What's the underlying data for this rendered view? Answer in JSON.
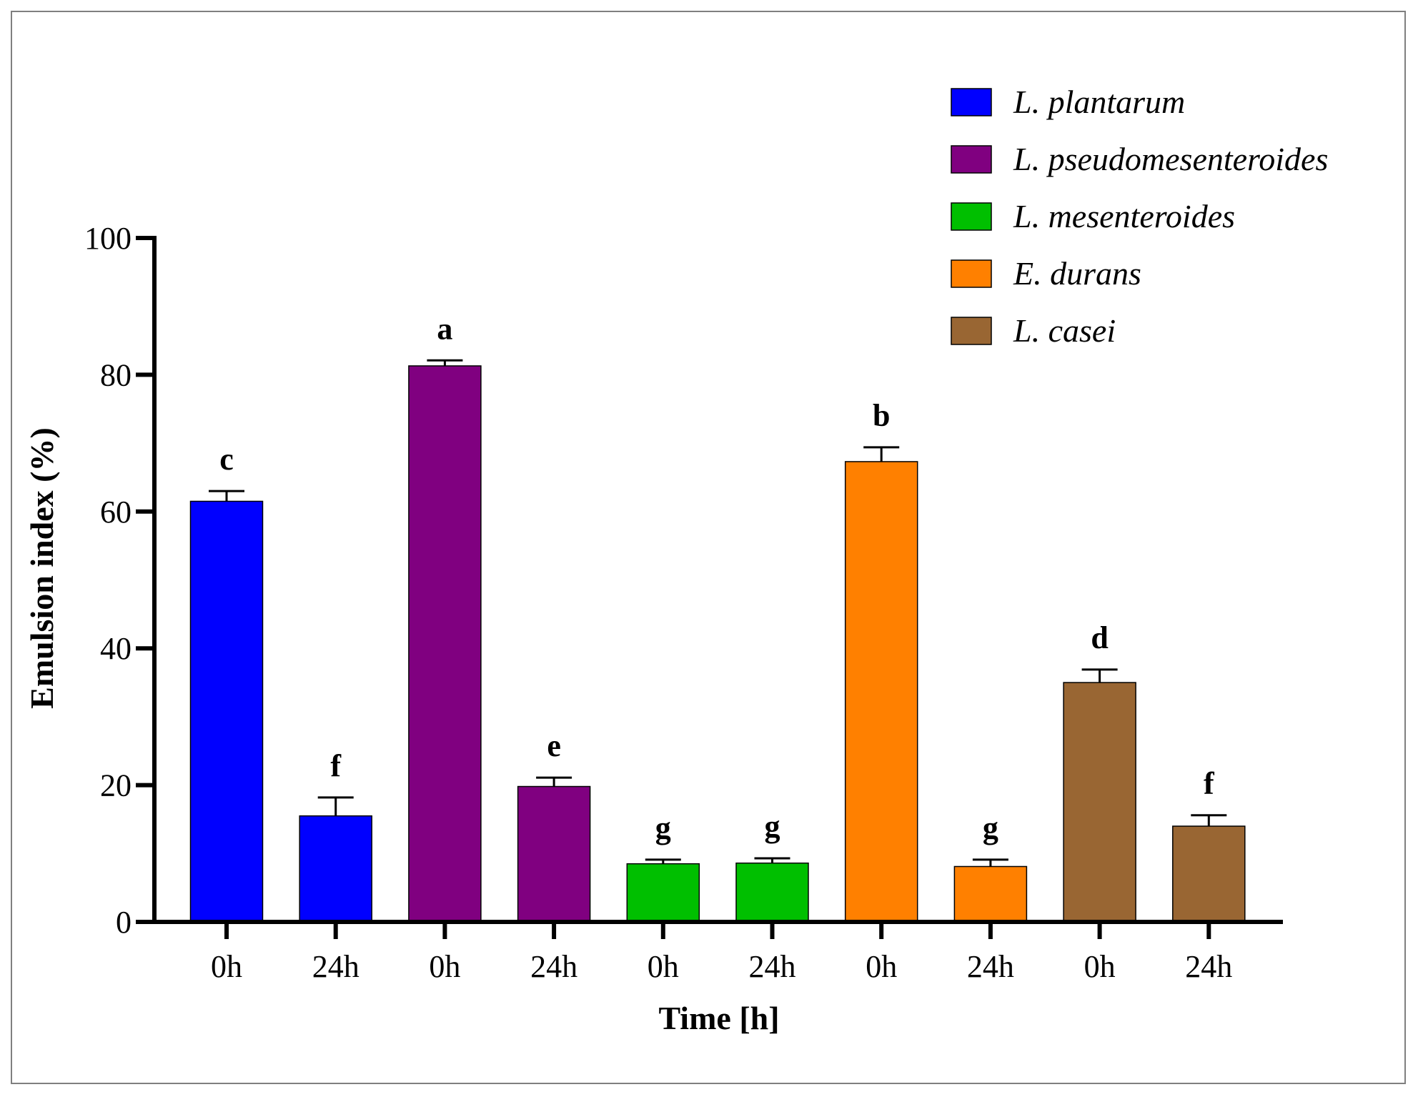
{
  "chart_data": {
    "type": "bar",
    "title": "",
    "xlabel": "Time [h]",
    "ylabel": "Emulsion index (%)",
    "ylim": [
      0,
      100
    ],
    "yticks": [
      "0",
      "20",
      "40",
      "60",
      "80",
      "100"
    ],
    "legend_position": "top-right",
    "legend": [
      {
        "name": "L. plantarum",
        "color": "#0000ff"
      },
      {
        "name": "L. pseudomesenteroides",
        "color": "#800080"
      },
      {
        "name": "L. mesenteroides",
        "color": "#00bf00"
      },
      {
        "name": "E. durans",
        "color": "#ff8000"
      },
      {
        "name": "L. casei",
        "color": "#996633"
      }
    ],
    "bars": [
      {
        "category": "0h",
        "series": "L. plantarum",
        "value": 61.5,
        "error": 1.5,
        "letter": "c"
      },
      {
        "category": "24h",
        "series": "L. plantarum",
        "value": 15.5,
        "error": 2.7,
        "letter": "f"
      },
      {
        "category": "0h",
        "series": "L. pseudomesenteroides",
        "value": 81.3,
        "error": 0.8,
        "letter": "a"
      },
      {
        "category": "24h",
        "series": "L. pseudomesenteroides",
        "value": 19.8,
        "error": 1.3,
        "letter": "e"
      },
      {
        "category": "0h",
        "series": "L. mesenteroides",
        "value": 8.5,
        "error": 0.6,
        "letter": "g"
      },
      {
        "category": "24h",
        "series": "L. mesenteroides",
        "value": 8.6,
        "error": 0.7,
        "letter": "g"
      },
      {
        "category": "0h",
        "series": "E. durans",
        "value": 67.3,
        "error": 2.1,
        "letter": "b"
      },
      {
        "category": "24h",
        "series": "E. durans",
        "value": 8.1,
        "error": 1.0,
        "letter": "g"
      },
      {
        "category": "0h",
        "series": "L. casei",
        "value": 35.0,
        "error": 1.9,
        "letter": "d"
      },
      {
        "category": "24h",
        "series": "L. casei",
        "value": 14.0,
        "error": 1.6,
        "letter": "f"
      }
    ]
  }
}
